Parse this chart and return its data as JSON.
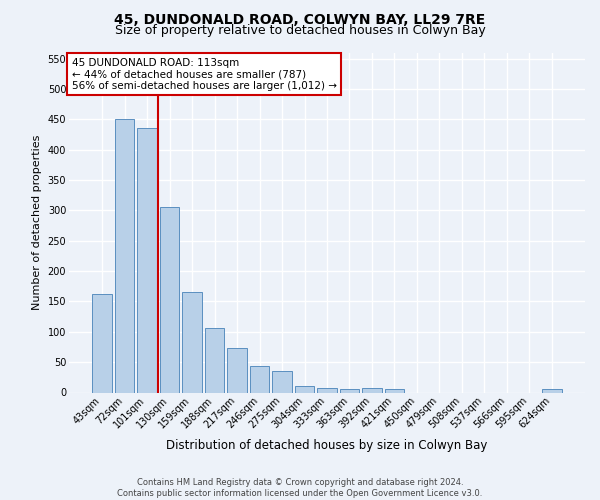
{
  "title": "45, DUNDONALD ROAD, COLWYN BAY, LL29 7RE",
  "subtitle": "Size of property relative to detached houses in Colwyn Bay",
  "xlabel": "Distribution of detached houses by size in Colwyn Bay",
  "ylabel": "Number of detached properties",
  "footer_line1": "Contains HM Land Registry data © Crown copyright and database right 2024.",
  "footer_line2": "Contains public sector information licensed under the Open Government Licence v3.0.",
  "categories": [
    "43sqm",
    "72sqm",
    "101sqm",
    "130sqm",
    "159sqm",
    "188sqm",
    "217sqm",
    "246sqm",
    "275sqm",
    "304sqm",
    "333sqm",
    "363sqm",
    "392sqm",
    "421sqm",
    "450sqm",
    "479sqm",
    "508sqm",
    "537sqm",
    "566sqm",
    "595sqm",
    "624sqm"
  ],
  "values": [
    163,
    450,
    435,
    306,
    165,
    107,
    74,
    44,
    36,
    11,
    7,
    6,
    7,
    5,
    0,
    0,
    0,
    0,
    0,
    0,
    5
  ],
  "bar_color": "#b8d0e8",
  "bar_edge_color": "#5a8fc0",
  "red_line_color": "#cc0000",
  "red_line_x": 2.5,
  "annotation_text_line1": "45 DUNDONALD ROAD: 113sqm",
  "annotation_text_line2": "← 44% of detached houses are smaller (787)",
  "annotation_text_line3": "56% of semi-detached houses are larger (1,012) →",
  "annotation_box_facecolor": "#ffffff",
  "annotation_box_edgecolor": "#cc0000",
  "ylim": [
    0,
    560
  ],
  "yticks": [
    0,
    50,
    100,
    150,
    200,
    250,
    300,
    350,
    400,
    450,
    500,
    550
  ],
  "bg_color": "#edf2f9",
  "grid_color": "#ffffff",
  "title_fontsize": 10,
  "subtitle_fontsize": 9,
  "ylabel_fontsize": 8,
  "xlabel_fontsize": 8.5,
  "tick_fontsize": 7,
  "footer_fontsize": 6,
  "annot_fontsize": 7.5
}
